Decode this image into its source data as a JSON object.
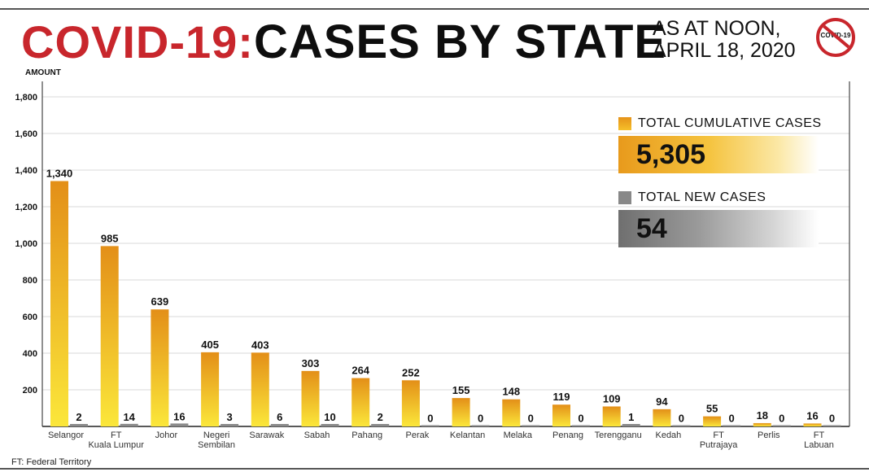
{
  "header": {
    "covid": "COVID-19:",
    "title": "CASES BY STATE",
    "as_at_line1": "AS AT NOON,",
    "as_at_line2": "APRIL 18, 2020",
    "badge_text": "COVID-19"
  },
  "legend": {
    "cumulative_label": "TOTAL CUMULATIVE CASES",
    "cumulative_value": "5,305",
    "new_label": "TOTAL NEW CASES",
    "new_value": "54"
  },
  "footnote": "FT: Federal Territory",
  "colors": {
    "cumulative_top": "#e38f18",
    "cumulative_bottom": "#fbe73a",
    "new_cases": "#8a8a8a",
    "title_red": "#c8262c"
  },
  "chart_data": {
    "type": "bar",
    "ylabel": "AMOUNT",
    "ylim": [
      0,
      1800
    ],
    "yticks": [
      0,
      200,
      400,
      600,
      800,
      1000,
      1200,
      1400,
      1600,
      1800
    ],
    "ytick_labels": [
      "",
      "200",
      "400",
      "600",
      "800",
      "1,000",
      "1,200",
      "1,400",
      "1,600",
      "1,800"
    ],
    "categories": [
      [
        "Selangor"
      ],
      [
        "FT",
        "Kuala Lumpur"
      ],
      [
        "Johor"
      ],
      [
        "Negeri",
        "Sembilan"
      ],
      [
        "Sarawak"
      ],
      [
        "Sabah"
      ],
      [
        "Pahang"
      ],
      [
        "Perak"
      ],
      [
        "Kelantan"
      ],
      [
        "Melaka"
      ],
      [
        "Penang"
      ],
      [
        "Terengganu"
      ],
      [
        "Kedah"
      ],
      [
        "FT",
        "Putrajaya"
      ],
      [
        "Perlis"
      ],
      [
        "FT",
        "Labuan"
      ]
    ],
    "series": [
      {
        "name": "Total cumulative cases",
        "values": [
          1340,
          985,
          639,
          405,
          403,
          303,
          264,
          252,
          155,
          148,
          119,
          109,
          94,
          55,
          18,
          16
        ],
        "labels": [
          "1,340",
          "985",
          "639",
          "405",
          "403",
          "303",
          "264",
          "252",
          "155",
          "148",
          "119",
          "109",
          "94",
          "55",
          "18",
          "16"
        ]
      },
      {
        "name": "Total new cases",
        "values": [
          2,
          14,
          16,
          3,
          6,
          10,
          2,
          0,
          0,
          0,
          0,
          1,
          0,
          0,
          0,
          0
        ],
        "labels": [
          "2",
          "14",
          "16",
          "3",
          "6",
          "10",
          "2",
          "0",
          "0",
          "0",
          "0",
          "1",
          "0",
          "0",
          "0",
          "0"
        ]
      }
    ]
  }
}
